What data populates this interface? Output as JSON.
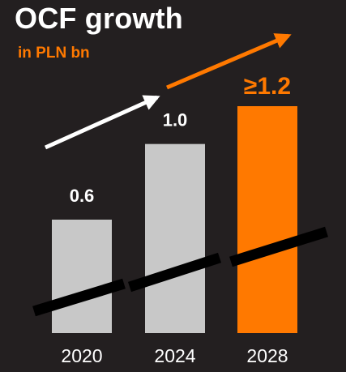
{
  "header": {
    "title": "OCF growth",
    "subtitle": "in PLN bn"
  },
  "colors": {
    "background": "#231f20",
    "bar_gray": "#c8c8c8",
    "accent": "#ff7900",
    "arrow_white": "#ffffff",
    "trend_line": "#000000"
  },
  "chart_data": {
    "type": "bar",
    "title": "OCF growth",
    "subtitle": "in PLN bn",
    "categories": [
      "2020",
      "2024",
      "2028"
    ],
    "values": [
      0.6,
      1.0,
      1.2
    ],
    "value_labels": [
      "0.6",
      "1.0",
      "≥1.2"
    ],
    "bar_colors": [
      "#c8c8c8",
      "#c8c8c8",
      "#ff7900"
    ],
    "highlight_index": 2,
    "xlabel": "",
    "ylabel": "",
    "ylim": [
      0,
      1.2
    ],
    "grid": false,
    "legend": "none"
  }
}
